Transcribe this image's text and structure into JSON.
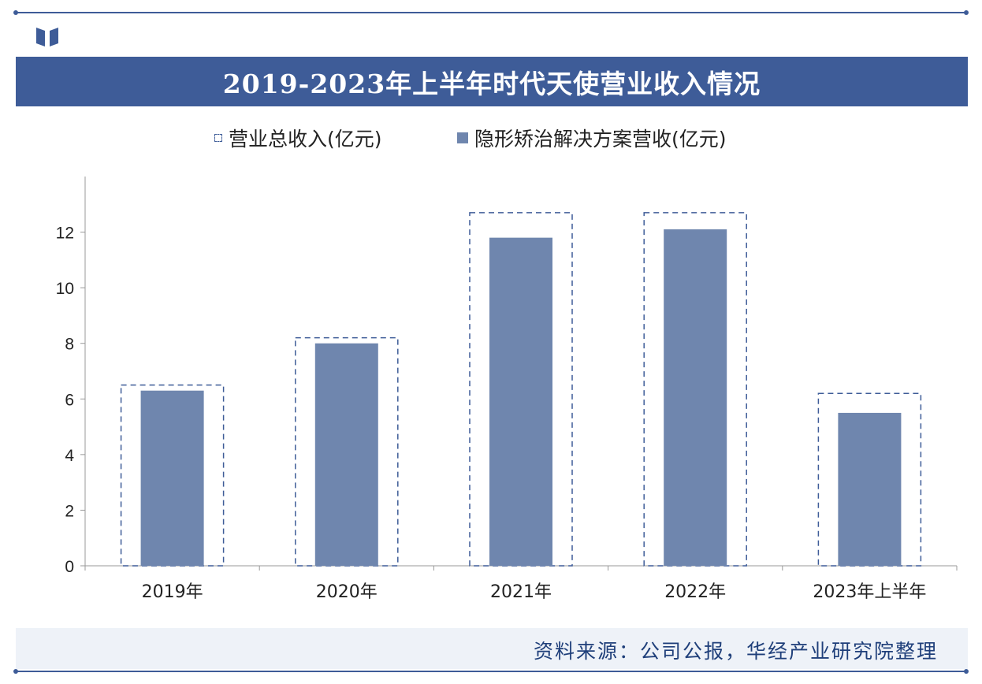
{
  "header": {
    "title": "2019-2023年上半年时代天使营业收入情况",
    "logo_icon": "book-logo-icon"
  },
  "colors": {
    "brand": "#3e5c98",
    "bar_fill": "#6f86ae",
    "outline": "#3e5c98"
  },
  "chart_data": {
    "type": "bar",
    "categories": [
      "2019年",
      "2020年",
      "2021年",
      "2022年",
      "2023年上半年"
    ],
    "series": [
      {
        "name": "营业总收入(亿元)",
        "style": "dashed-outline",
        "values": [
          6.5,
          8.2,
          12.7,
          12.7,
          6.2
        ]
      },
      {
        "name": "隐形矫治解决方案营收(亿元)",
        "style": "filled",
        "values": [
          6.3,
          8.0,
          11.8,
          12.1,
          5.5
        ]
      }
    ],
    "yticks": [
      0,
      2,
      4,
      6,
      8,
      10,
      12
    ],
    "ylim": [
      0,
      14
    ],
    "grid": false,
    "legend_position": "top"
  },
  "footer": {
    "source": "资料来源：公司公报，华经产业研究院整理"
  }
}
